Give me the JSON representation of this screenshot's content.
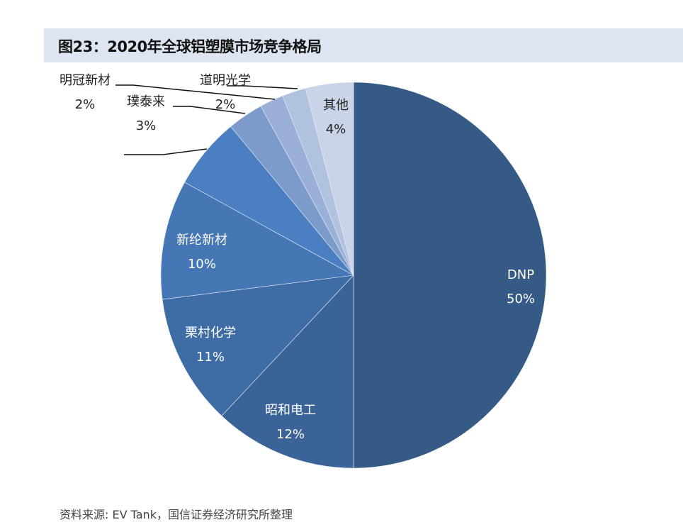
{
  "header": {
    "title": "图23：2020年全球铝塑膜市场竞争格局"
  },
  "chart_data": {
    "type": "pie",
    "title": "图23：2020年全球铝塑膜市场竞争格局",
    "start": "top",
    "direction": "clockwise",
    "slices": [
      {
        "name": "DNP",
        "value": 50,
        "label": "50%",
        "color": "#355a85"
      },
      {
        "name": "昭和电工",
        "value": 12,
        "label": "12%",
        "color": "#3a6497"
      },
      {
        "name": "栗村化学",
        "value": 11,
        "label": "11%",
        "color": "#3e6ca4"
      },
      {
        "name": "新纶新材",
        "value": 10,
        "label": "10%",
        "color": "#4577b5"
      },
      {
        "name": "",
        "value": 6,
        "label": "",
        "color": "#4a80c2"
      },
      {
        "name": "璞泰来",
        "value": 3,
        "label": "3%",
        "color": "#7d9bca"
      },
      {
        "name": "明冠新材",
        "value": 2,
        "label": "2%",
        "color": "#9ab0d6"
      },
      {
        "name": "道明光学",
        "value": 2,
        "label": "2%",
        "color": "#b1c2df"
      },
      {
        "name": "其他",
        "value": 4,
        "label": "4%",
        "color": "#cad4e8"
      }
    ]
  },
  "footer": {
    "source": "资料来源: EV Tank，国信证券经济研究所整理"
  }
}
